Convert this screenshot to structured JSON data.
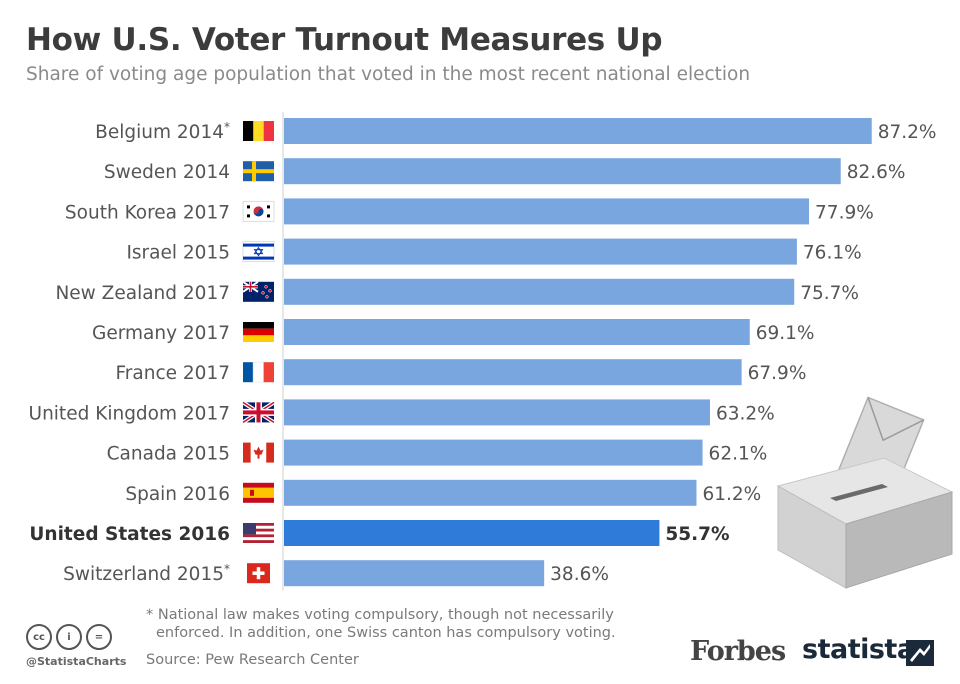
{
  "title": "How U.S. Voter Turnout Measures Up",
  "subtitle": "Share of voting age population that voted in the most recent national election",
  "colors": {
    "bar": "#7aa6e0",
    "highlight_bar": "#2f7bd9",
    "label_text": "#555555",
    "highlight_text": "#333333"
  },
  "chart_data": {
    "type": "bar",
    "orientation": "horizontal",
    "categories": [
      {
        "country": "Belgium",
        "year": "2014",
        "mark": "*",
        "flag": "belgium-flag"
      },
      {
        "country": "Sweden",
        "year": "2014",
        "mark": "",
        "flag": "sweden-flag"
      },
      {
        "country": "South Korea",
        "year": "2017",
        "mark": "",
        "flag": "south-korea-flag"
      },
      {
        "country": "Israel",
        "year": "2015",
        "mark": "",
        "flag": "israel-flag"
      },
      {
        "country": "New Zealand",
        "year": "2017",
        "mark": "",
        "flag": "new-zealand-flag"
      },
      {
        "country": "Germany",
        "year": "2017",
        "mark": "",
        "flag": "germany-flag"
      },
      {
        "country": "France",
        "year": "2017",
        "mark": "",
        "flag": "france-flag"
      },
      {
        "country": "United Kingdom",
        "year": "2017",
        "mark": "",
        "flag": "uk-flag"
      },
      {
        "country": "Canada",
        "year": "2015",
        "mark": "",
        "flag": "canada-flag"
      },
      {
        "country": "Spain",
        "year": "2016",
        "mark": "",
        "flag": "spain-flag"
      },
      {
        "country": "United States",
        "year": "2016",
        "mark": "",
        "flag": "usa-flag"
      },
      {
        "country": "Switzerland",
        "year": "2015",
        "mark": "*",
        "flag": "switzerland-flag"
      }
    ],
    "values": [
      87.2,
      82.6,
      77.9,
      76.1,
      75.7,
      69.1,
      67.9,
      63.2,
      62.1,
      61.2,
      55.7,
      38.6
    ],
    "value_labels": [
      "87.2%",
      "82.6%",
      "77.9%",
      "76.1%",
      "75.7%",
      "69.1%",
      "67.9%",
      "63.2%",
      "62.1%",
      "61.2%",
      "55.7%",
      "38.6%"
    ],
    "highlight_index": 10,
    "xlim": [
      0,
      100
    ],
    "unit": "%",
    "grid": false
  },
  "footnote": {
    "line1": "* National law makes voting compulsory, though not necessarily",
    "line2": "enforced. In addition, one Swiss canton has compulsory voting."
  },
  "source": "Source: Pew Research Center",
  "handle": "@StatistaCharts",
  "cc_icons": [
    {
      "icon": "cc-icon",
      "text": "cc"
    },
    {
      "icon": "by-icon",
      "text": "i"
    },
    {
      "icon": "nd-icon",
      "text": "="
    }
  ],
  "brands": {
    "forbes": "Forbes",
    "statista": "statista"
  },
  "illustration": "ballot-box-icon"
}
